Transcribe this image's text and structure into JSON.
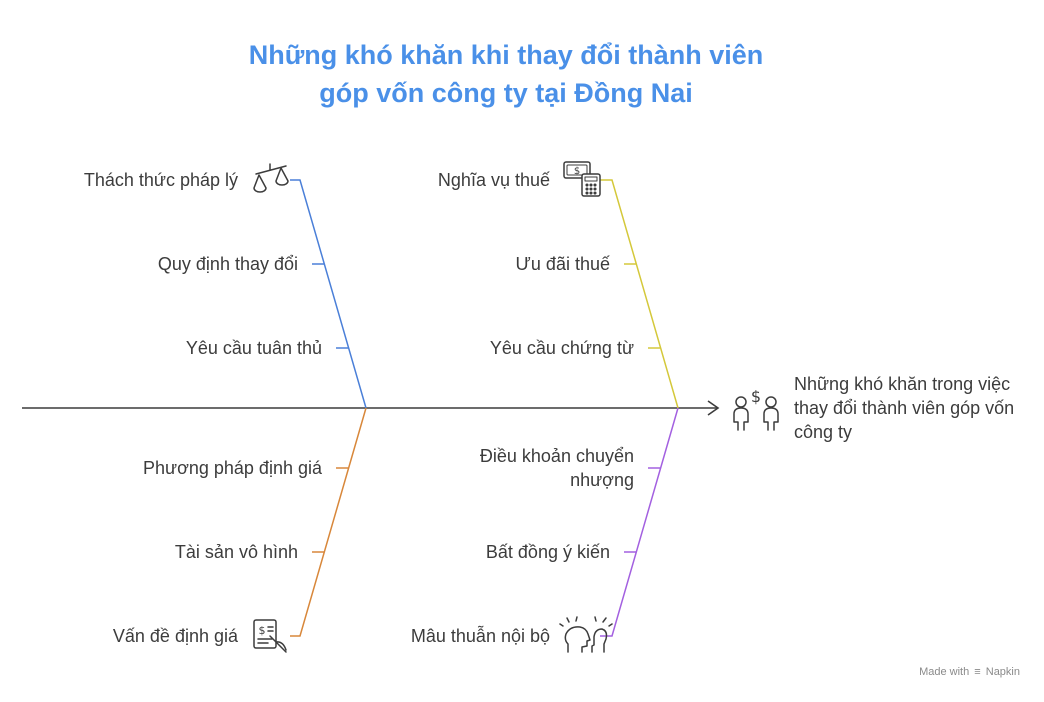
{
  "title": {
    "line1": "Những khó khăn khi thay đổi thành viên",
    "line2": "góp vốn công ty tại Đồng Nai"
  },
  "head": {
    "text": "Những khó khăn trong việc thay đổi thành viên góp vốn công ty",
    "icon": "people-money-icon"
  },
  "branches": {
    "top_left": {
      "color": "#4a7fd8",
      "icon": "scales-icon",
      "items": [
        "Thách thức pháp lý",
        "Quy định thay đổi",
        "Yêu cầu tuân thủ"
      ]
    },
    "top_right": {
      "color": "#d4c83a",
      "icon": "money-calculator-icon",
      "items": [
        "Nghĩa vụ thuế",
        "Ưu đãi thuế",
        "Yêu cầu chứng từ"
      ]
    },
    "bottom_left": {
      "color": "#d8873a",
      "icon": "document-valuation-icon",
      "items": [
        "Phương pháp định giá",
        "Tài sản vô hình",
        "Vấn đề định giá"
      ]
    },
    "bottom_right": {
      "color": "#a360e0",
      "icon": "conflict-head-icon",
      "items": [
        "Điều khoản chuyển nhượng",
        "Bất đồng ý kiến",
        "Mâu thuẫn nội bộ"
      ]
    }
  },
  "footer": {
    "made_with": "Made with",
    "brand": "Napkin"
  }
}
